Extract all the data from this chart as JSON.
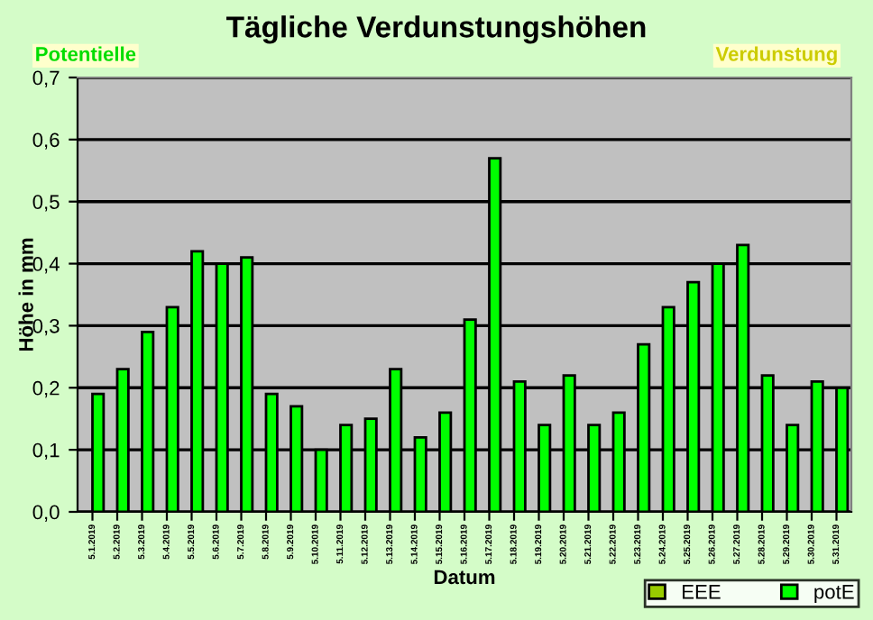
{
  "chart_data": {
    "type": "bar",
    "title": "Tägliche Verdunstungshöhen",
    "xlabel": "Datum",
    "ylabel": "Höhe in mm",
    "annotations": [
      "Potentielle",
      "Verdunstung"
    ],
    "categories": [
      "5.1.2019",
      "5.2.2019",
      "5.3.2019",
      "5.4.2019",
      "5.5.2019",
      "5.6.2019",
      "5.7.2019",
      "5.8.2019",
      "5.9.2019",
      "5.10.2019",
      "5.11.2019",
      "5.12.2019",
      "5.13.2019",
      "5.14.2019",
      "5.15.2019",
      "5.16.2019",
      "5.17.2019",
      "5.18.2019",
      "5.19.2019",
      "5.20.2019",
      "5.21.2019",
      "5.22.2019",
      "5.23.2019",
      "5.24.2019",
      "5.25.2019",
      "5.26.2019",
      "5.27.2019",
      "5.28.2019",
      "5.29.2019",
      "5.30.2019",
      "5.31.2019"
    ],
    "series": [
      {
        "name": "EEE",
        "color": "#99cc00",
        "values": [
          null,
          null,
          null,
          null,
          null,
          null,
          null,
          null,
          null,
          null,
          null,
          null,
          null,
          null,
          null,
          null,
          null,
          null,
          null,
          null,
          null,
          null,
          null,
          null,
          null,
          null,
          null,
          null,
          null,
          null,
          null
        ]
      },
      {
        "name": "potE",
        "color": "#00ff00",
        "values": [
          0.19,
          0.23,
          0.29,
          0.33,
          0.42,
          0.4,
          0.41,
          0.19,
          0.17,
          0.1,
          0.14,
          0.15,
          0.23,
          0.12,
          0.16,
          0.31,
          0.57,
          0.21,
          0.14,
          0.22,
          0.14,
          0.16,
          0.27,
          0.33,
          0.37,
          0.4,
          0.43,
          0.22,
          0.14,
          0.21,
          0.2
        ]
      }
    ],
    "ylim": [
      0,
      0.7
    ],
    "yticks": [
      {
        "value": 0,
        "label": "0,0"
      },
      {
        "value": 0.1,
        "label": "0,1"
      },
      {
        "value": 0.2,
        "label": "0,2"
      },
      {
        "value": 0.3,
        "label": "0,3"
      },
      {
        "value": 0.4,
        "label": "0,4"
      },
      {
        "value": 0.5,
        "label": "0,5"
      },
      {
        "value": 0.6,
        "label": "0,6"
      },
      {
        "value": 0.7,
        "label": "0,7"
      }
    ],
    "grid": "y",
    "legend": "bottom right"
  }
}
